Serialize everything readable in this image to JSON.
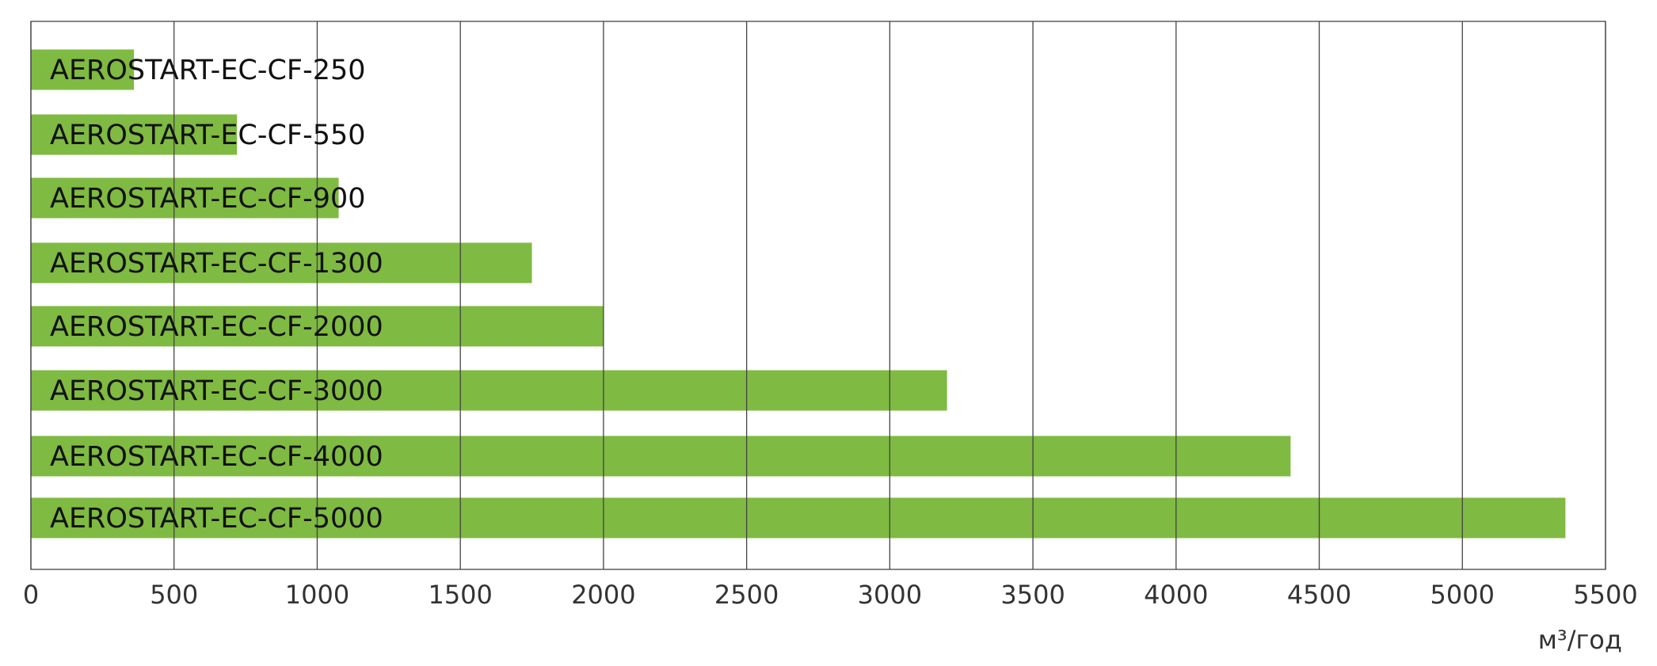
{
  "chart_data": {
    "type": "hbar",
    "categories": [
      "AEROSTART-EC-CF-250",
      "AEROSTART-EC-CF-550",
      "AEROSTART-EC-CF-900",
      "AEROSTART-EC-CF-1300",
      "AEROSTART-EC-CF-2000",
      "AEROSTART-EC-CF-3000",
      "AEROSTART-EC-CF-4000",
      "AEROSTART-EC-CF-5000"
    ],
    "values": [
      360,
      720,
      1075,
      1750,
      2000,
      3200,
      4400,
      5360
    ],
    "color": "#7fba42",
    "xlim": [
      0,
      5500
    ],
    "xticks": [
      0,
      500,
      1000,
      1500,
      2000,
      2500,
      3000,
      3500,
      4000,
      4500,
      5000,
      5500
    ],
    "x_label": "м³/год",
    "grid": true
  }
}
